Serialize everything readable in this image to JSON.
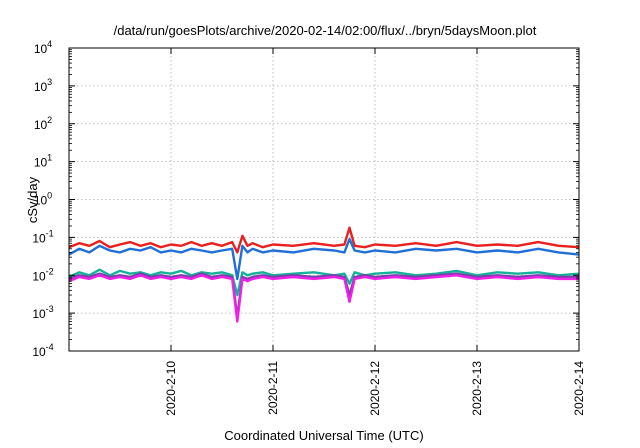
{
  "chart_data": {
    "type": "line",
    "title": "/data/run/goesPlots/archive/2020-02-14/02:00/flux/../bryn/5daysMoon.plot",
    "xlabel": "Coordinated Universal Time (UTC)",
    "ylabel": "cSv/day",
    "yscale": "log",
    "ylim": [
      0.0001,
      10000
    ],
    "xlim_days": [
      "2020-02-09T02:00",
      "2020-02-14T02:00"
    ],
    "xticks": [
      "2020-2-10",
      "2020-2-11",
      "2020-2-12",
      "2020-2-13",
      "2020-2-14"
    ],
    "ytick_mantissa": [
      "10",
      "10",
      "10",
      "10",
      "10",
      "10",
      "10",
      "10",
      "10"
    ],
    "ytick_exponents": [
      "-4",
      "-3",
      "-2",
      "-1",
      "0",
      "1",
      "2",
      "3",
      "4"
    ],
    "grid": true,
    "x_start": 0,
    "x_end": 5,
    "series": [
      {
        "color": "#e8201e",
        "x": [
          0,
          0.1,
          0.2,
          0.3,
          0.4,
          0.5,
          0.6,
          0.7,
          0.8,
          0.9,
          1.0,
          1.1,
          1.2,
          1.3,
          1.4,
          1.5,
          1.6,
          1.65,
          1.7,
          1.75,
          1.8,
          1.9,
          2.0,
          2.2,
          2.4,
          2.6,
          2.7,
          2.75,
          2.8,
          2.9,
          3.0,
          3.2,
          3.4,
          3.6,
          3.8,
          4.0,
          4.2,
          4.4,
          4.6,
          4.8,
          5.0
        ],
        "y": [
          0.055,
          0.07,
          0.06,
          0.08,
          0.055,
          0.065,
          0.075,
          0.06,
          0.07,
          0.055,
          0.065,
          0.06,
          0.075,
          0.06,
          0.07,
          0.06,
          0.075,
          0.04,
          0.11,
          0.06,
          0.07,
          0.055,
          0.065,
          0.06,
          0.07,
          0.06,
          0.065,
          0.18,
          0.06,
          0.055,
          0.065,
          0.06,
          0.07,
          0.06,
          0.075,
          0.06,
          0.065,
          0.06,
          0.075,
          0.06,
          0.055
        ]
      },
      {
        "color": "#1f6fd6",
        "x": [
          0,
          0.1,
          0.2,
          0.3,
          0.4,
          0.5,
          0.6,
          0.7,
          0.8,
          0.9,
          1.0,
          1.1,
          1.2,
          1.3,
          1.4,
          1.5,
          1.6,
          1.65,
          1.7,
          1.75,
          1.8,
          1.9,
          2.0,
          2.2,
          2.4,
          2.6,
          2.7,
          2.75,
          2.8,
          2.9,
          3.0,
          3.2,
          3.4,
          3.6,
          3.8,
          4.0,
          4.2,
          4.4,
          4.6,
          4.8,
          5.0
        ],
        "y": [
          0.035,
          0.05,
          0.04,
          0.06,
          0.045,
          0.04,
          0.05,
          0.045,
          0.055,
          0.04,
          0.045,
          0.04,
          0.05,
          0.045,
          0.04,
          0.045,
          0.05,
          0.008,
          0.06,
          0.04,
          0.05,
          0.04,
          0.045,
          0.04,
          0.05,
          0.045,
          0.04,
          0.09,
          0.045,
          0.04,
          0.045,
          0.04,
          0.05,
          0.045,
          0.05,
          0.04,
          0.045,
          0.04,
          0.05,
          0.04,
          0.035
        ]
      },
      {
        "color": "#17b09a",
        "x": [
          0,
          0.1,
          0.2,
          0.3,
          0.4,
          0.5,
          0.6,
          0.7,
          0.8,
          0.9,
          1.0,
          1.1,
          1.2,
          1.3,
          1.4,
          1.5,
          1.6,
          1.65,
          1.7,
          1.75,
          1.8,
          1.9,
          2.0,
          2.2,
          2.4,
          2.6,
          2.7,
          2.75,
          2.8,
          2.9,
          3.0,
          3.2,
          3.4,
          3.6,
          3.8,
          4.0,
          4.2,
          4.4,
          4.6,
          4.8,
          5.0
        ],
        "y": [
          0.009,
          0.012,
          0.01,
          0.014,
          0.01,
          0.013,
          0.011,
          0.012,
          0.01,
          0.012,
          0.011,
          0.013,
          0.01,
          0.012,
          0.011,
          0.012,
          0.01,
          0.003,
          0.012,
          0.01,
          0.011,
          0.012,
          0.01,
          0.011,
          0.012,
          0.01,
          0.011,
          0.006,
          0.012,
          0.01,
          0.011,
          0.012,
          0.01,
          0.011,
          0.013,
          0.01,
          0.012,
          0.011,
          0.012,
          0.01,
          0.011
        ]
      },
      {
        "color": "#7a3fa8",
        "x": [
          0,
          0.1,
          0.2,
          0.3,
          0.4,
          0.5,
          0.6,
          0.7,
          0.8,
          0.9,
          1.0,
          1.1,
          1.2,
          1.3,
          1.4,
          1.5,
          1.6,
          1.65,
          1.7,
          1.75,
          1.8,
          1.9,
          2.0,
          2.2,
          2.4,
          2.6,
          2.7,
          2.75,
          2.8,
          2.9,
          3.0,
          3.2,
          3.4,
          3.6,
          3.8,
          4.0,
          4.2,
          4.4,
          4.6,
          4.8,
          5.0
        ],
        "y": [
          0.008,
          0.01,
          0.009,
          0.011,
          0.009,
          0.01,
          0.009,
          0.011,
          0.009,
          0.01,
          0.009,
          0.01,
          0.009,
          0.011,
          0.009,
          0.01,
          0.009,
          0.0008,
          0.009,
          0.008,
          0.009,
          0.01,
          0.009,
          0.01,
          0.009,
          0.01,
          0.009,
          0.003,
          0.009,
          0.01,
          0.009,
          0.01,
          0.009,
          0.01,
          0.011,
          0.009,
          0.01,
          0.009,
          0.01,
          0.009,
          0.009
        ]
      },
      {
        "color": "#f020e8",
        "x": [
          0,
          0.1,
          0.2,
          0.3,
          0.4,
          0.5,
          0.6,
          0.7,
          0.8,
          0.9,
          1.0,
          1.1,
          1.2,
          1.3,
          1.4,
          1.5,
          1.6,
          1.65,
          1.7,
          1.75,
          1.8,
          1.9,
          2.0,
          2.2,
          2.4,
          2.6,
          2.7,
          2.75,
          2.8,
          2.9,
          3.0,
          3.2,
          3.4,
          3.6,
          3.8,
          4.0,
          4.2,
          4.4,
          4.6,
          4.8,
          5.0
        ],
        "y": [
          0.007,
          0.009,
          0.008,
          0.01,
          0.008,
          0.009,
          0.008,
          0.01,
          0.008,
          0.009,
          0.008,
          0.009,
          0.008,
          0.01,
          0.008,
          0.009,
          0.008,
          0.0006,
          0.008,
          0.007,
          0.008,
          0.009,
          0.008,
          0.009,
          0.008,
          0.009,
          0.008,
          0.002,
          0.008,
          0.009,
          0.008,
          0.009,
          0.008,
          0.009,
          0.01,
          0.008,
          0.009,
          0.008,
          0.009,
          0.008,
          0.008
        ]
      }
    ]
  }
}
